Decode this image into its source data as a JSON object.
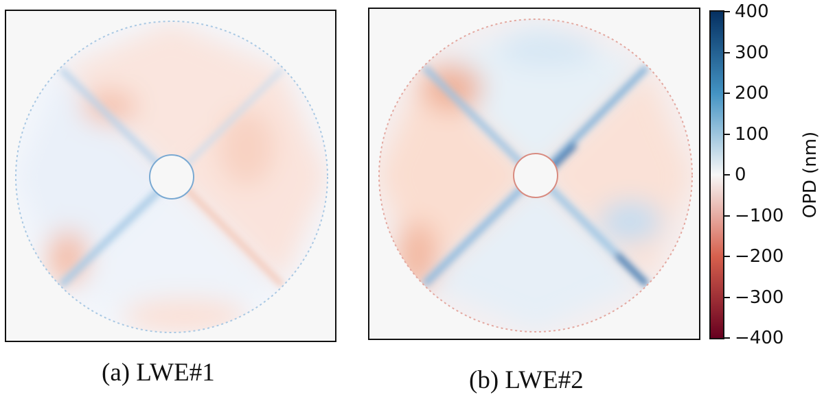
{
  "chart_data": [
    {
      "type": "heatmap",
      "title": "",
      "caption": "(a) LWE#1",
      "content": "circular pupil with central obstruction and four diagonal spider vanes; optical path difference map with quadrant-wise piston/tip-tilt pattern"
    },
    {
      "type": "heatmap",
      "title": "",
      "caption": "(b) LWE#2",
      "content": "circular pupil with central obstruction and four diagonal spider vanes; stronger optical path difference pattern across quadrants"
    }
  ],
  "colorbar": {
    "label": "OPD (nm)",
    "range": [
      -400,
      400
    ],
    "ticks": [
      400,
      300,
      200,
      100,
      0,
      -100,
      -200,
      -300,
      -400
    ],
    "tick_labels": [
      "400",
      "300",
      "200",
      "100",
      "0",
      "−100",
      "−200",
      "−300",
      "−400"
    ],
    "colormap": "RdBu",
    "colors": {
      "high": "#053061",
      "mid_high": "#4393c3",
      "zero": "#f7f7f7",
      "mid_low": "#d6604d",
      "low": "#67001f"
    }
  }
}
